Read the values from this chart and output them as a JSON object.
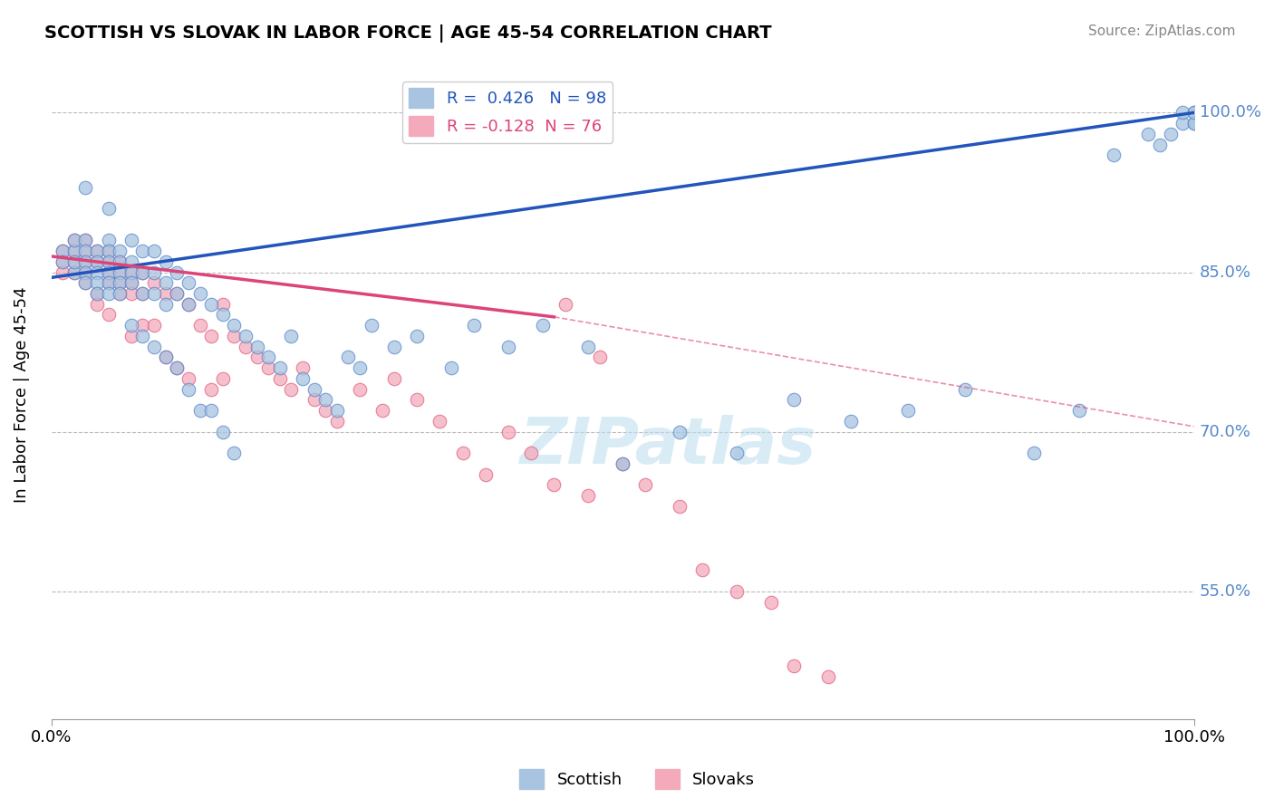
{
  "title": "SCOTTISH VS SLOVAK IN LABOR FORCE | AGE 45-54 CORRELATION CHART",
  "source": "Source: ZipAtlas.com",
  "ylabel": "In Labor Force | Age 45-54",
  "legend_scottish": "Scottish",
  "legend_slovaks": "Slovaks",
  "R_scottish": 0.426,
  "N_scottish": 98,
  "R_slovaks": -0.128,
  "N_slovaks": 76,
  "blue_color": "#A8C4E0",
  "pink_color": "#F4AABB",
  "blue_edge_color": "#5588CC",
  "pink_edge_color": "#E06080",
  "blue_line_color": "#2255BB",
  "pink_line_color": "#DD4477",
  "right_label_color": "#5588CC",
  "scottish_x": [
    0.01,
    0.01,
    0.02,
    0.02,
    0.02,
    0.02,
    0.03,
    0.03,
    0.03,
    0.03,
    0.03,
    0.03,
    0.04,
    0.04,
    0.04,
    0.04,
    0.04,
    0.05,
    0.05,
    0.05,
    0.05,
    0.05,
    0.05,
    0.05,
    0.06,
    0.06,
    0.06,
    0.06,
    0.06,
    0.07,
    0.07,
    0.07,
    0.07,
    0.07,
    0.08,
    0.08,
    0.08,
    0.08,
    0.09,
    0.09,
    0.09,
    0.09,
    0.1,
    0.1,
    0.1,
    0.1,
    0.11,
    0.11,
    0.11,
    0.12,
    0.12,
    0.12,
    0.13,
    0.13,
    0.14,
    0.14,
    0.15,
    0.15,
    0.16,
    0.16,
    0.17,
    0.18,
    0.19,
    0.2,
    0.21,
    0.22,
    0.23,
    0.24,
    0.25,
    0.26,
    0.27,
    0.28,
    0.3,
    0.32,
    0.35,
    0.37,
    0.4,
    0.43,
    0.47,
    0.5,
    0.55,
    0.6,
    0.65,
    0.7,
    0.75,
    0.8,
    0.86,
    0.9,
    0.93,
    0.96,
    0.97,
    0.98,
    0.99,
    0.99,
    1.0,
    1.0,
    1.0,
    1.0
  ],
  "scottish_y": [
    0.87,
    0.86,
    0.87,
    0.88,
    0.85,
    0.86,
    0.93,
    0.88,
    0.87,
    0.86,
    0.85,
    0.84,
    0.87,
    0.86,
    0.85,
    0.84,
    0.83,
    0.91,
    0.88,
    0.87,
    0.86,
    0.85,
    0.84,
    0.83,
    0.87,
    0.86,
    0.85,
    0.84,
    0.83,
    0.88,
    0.86,
    0.85,
    0.84,
    0.8,
    0.87,
    0.85,
    0.83,
    0.79,
    0.87,
    0.85,
    0.83,
    0.78,
    0.86,
    0.84,
    0.82,
    0.77,
    0.85,
    0.83,
    0.76,
    0.84,
    0.82,
    0.74,
    0.83,
    0.72,
    0.82,
    0.72,
    0.81,
    0.7,
    0.8,
    0.68,
    0.79,
    0.78,
    0.77,
    0.76,
    0.79,
    0.75,
    0.74,
    0.73,
    0.72,
    0.77,
    0.76,
    0.8,
    0.78,
    0.79,
    0.76,
    0.8,
    0.78,
    0.8,
    0.78,
    0.67,
    0.7,
    0.68,
    0.73,
    0.71,
    0.72,
    0.74,
    0.68,
    0.72,
    0.96,
    0.98,
    0.97,
    0.98,
    0.99,
    1.0,
    0.99,
    1.0,
    0.99,
    1.0
  ],
  "slovaks_x": [
    0.01,
    0.01,
    0.01,
    0.02,
    0.02,
    0.02,
    0.02,
    0.03,
    0.03,
    0.03,
    0.03,
    0.03,
    0.04,
    0.04,
    0.04,
    0.04,
    0.05,
    0.05,
    0.05,
    0.05,
    0.05,
    0.06,
    0.06,
    0.06,
    0.06,
    0.07,
    0.07,
    0.07,
    0.07,
    0.08,
    0.08,
    0.08,
    0.09,
    0.09,
    0.1,
    0.1,
    0.11,
    0.11,
    0.12,
    0.12,
    0.13,
    0.14,
    0.14,
    0.15,
    0.15,
    0.16,
    0.17,
    0.18,
    0.19,
    0.2,
    0.21,
    0.22,
    0.23,
    0.24,
    0.25,
    0.27,
    0.29,
    0.3,
    0.32,
    0.34,
    0.36,
    0.38,
    0.4,
    0.42,
    0.44,
    0.45,
    0.47,
    0.48,
    0.5,
    0.52,
    0.55,
    0.57,
    0.6,
    0.63,
    0.65,
    0.68
  ],
  "slovaks_y": [
    0.87,
    0.86,
    0.85,
    0.88,
    0.87,
    0.86,
    0.85,
    0.88,
    0.87,
    0.86,
    0.85,
    0.84,
    0.87,
    0.86,
    0.83,
    0.82,
    0.87,
    0.86,
    0.85,
    0.84,
    0.81,
    0.86,
    0.85,
    0.84,
    0.83,
    0.85,
    0.84,
    0.83,
    0.79,
    0.85,
    0.83,
    0.8,
    0.84,
    0.8,
    0.83,
    0.77,
    0.83,
    0.76,
    0.82,
    0.75,
    0.8,
    0.79,
    0.74,
    0.82,
    0.75,
    0.79,
    0.78,
    0.77,
    0.76,
    0.75,
    0.74,
    0.76,
    0.73,
    0.72,
    0.71,
    0.74,
    0.72,
    0.75,
    0.73,
    0.71,
    0.68,
    0.66,
    0.7,
    0.68,
    0.65,
    0.82,
    0.64,
    0.77,
    0.67,
    0.65,
    0.63,
    0.57,
    0.55,
    0.54,
    0.48,
    0.47
  ],
  "xlim": [
    0.0,
    1.0
  ],
  "ylim": [
    0.43,
    1.04
  ],
  "yticks": [
    0.55,
    0.7,
    0.85,
    1.0
  ],
  "ytick_labels": [
    "55.0%",
    "70.0%",
    "85.0%",
    "100.0%"
  ],
  "xtick_labels": [
    "0.0%",
    "100.0%"
  ],
  "background_color": "#FFFFFF",
  "watermark_text": "ZIPatlas",
  "watermark_color": "#BBDDEE",
  "blue_line_start_x": 0.0,
  "blue_line_start_y": 0.845,
  "blue_line_end_x": 1.0,
  "blue_line_end_y": 1.0,
  "pink_line_start_x": 0.0,
  "pink_line_start_y": 0.865,
  "pink_line_solid_end_x": 0.44,
  "pink_line_solid_end_y": 0.808,
  "pink_line_end_x": 1.0,
  "pink_line_end_y": 0.705
}
